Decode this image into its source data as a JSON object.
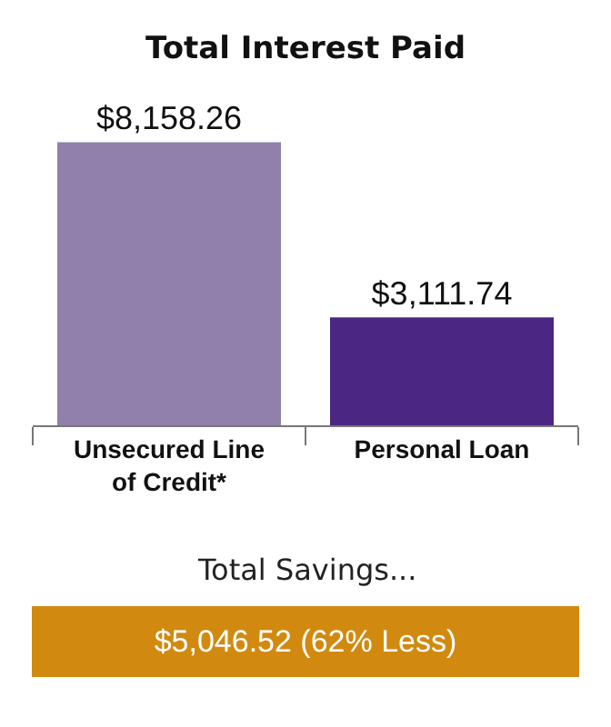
{
  "chart_data": {
    "type": "bar",
    "title": "Total Interest Paid",
    "categories": [
      "Unsecured Line of Credit*",
      "Personal Loan"
    ],
    "values": [
      8158.26,
      3111.74
    ],
    "colors": [
      "#9080ab",
      "#4b2783"
    ],
    "value_labels": [
      "$8,158.26",
      "$3,111.74"
    ],
    "annotations": [
      "Total Savings...",
      "$5,046.52 (62% Less)"
    ],
    "grid": false,
    "legend": false
  }
}
